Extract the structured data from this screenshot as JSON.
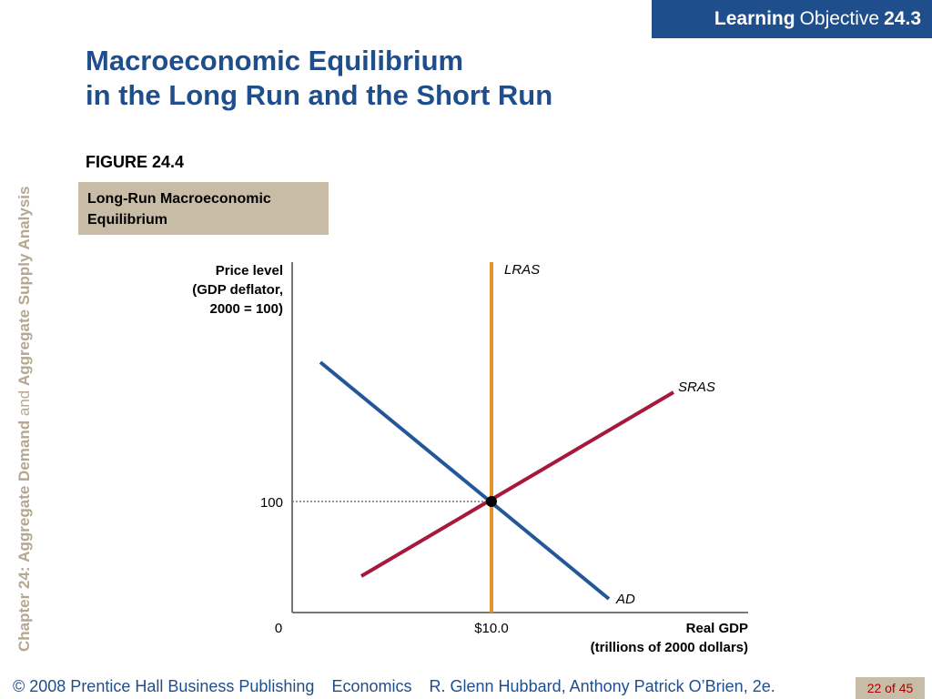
{
  "header": {
    "learning": "Learning",
    "objective": "Objective",
    "number": "24.3",
    "title_line1": "Macroeconomic Equilibrium",
    "title_line2": "in the Long Run and the Short Run"
  },
  "sidebar": {
    "chapter": "Chapter 24:",
    "topic1": "Aggregate Demand",
    "and": "and",
    "topic2": "Aggregate Supply Analysis"
  },
  "figure": {
    "label": "FIGURE 24.4",
    "caption_line1": "Long-Run Macroeconomic",
    "caption_line2": "Equilibrium"
  },
  "colors": {
    "brand": "#1f4e8c",
    "caption_bg": "#c9bca6",
    "lras": "#e8902a",
    "sras": "#a6193c",
    "ad": "#24579a"
  },
  "chart_data": {
    "type": "line",
    "ylabel_lines": [
      "Price level",
      "(GDP deflator,",
      "2000 = 100)"
    ],
    "xlabel_lines": [
      "Real GDP",
      "(trillions of 2000 dollars)"
    ],
    "origin_label": "0",
    "x_tick": {
      "value": 10.0,
      "label": "$10.0"
    },
    "y_tick": {
      "value": 100,
      "label": "100"
    },
    "equilibrium": {
      "x": 10.0,
      "y": 100
    },
    "xlim": [
      0,
      10.0
    ],
    "ylim": [
      0,
      100
    ],
    "series": [
      {
        "name": "LRAS",
        "type": "vertical",
        "x": 10.0
      },
      {
        "name": "SRAS",
        "type": "upward",
        "through": [
          10.0,
          100
        ]
      },
      {
        "name": "AD",
        "type": "downward",
        "through": [
          10.0,
          100
        ]
      }
    ],
    "grid": false
  },
  "footer": {
    "copyright": "© 2008 Prentice Hall Business Publishing",
    "book": "Economics",
    "authors": "R. Glenn Hubbard, Anthony Patrick O’Brien, 2e.",
    "page": "22 of 45"
  }
}
